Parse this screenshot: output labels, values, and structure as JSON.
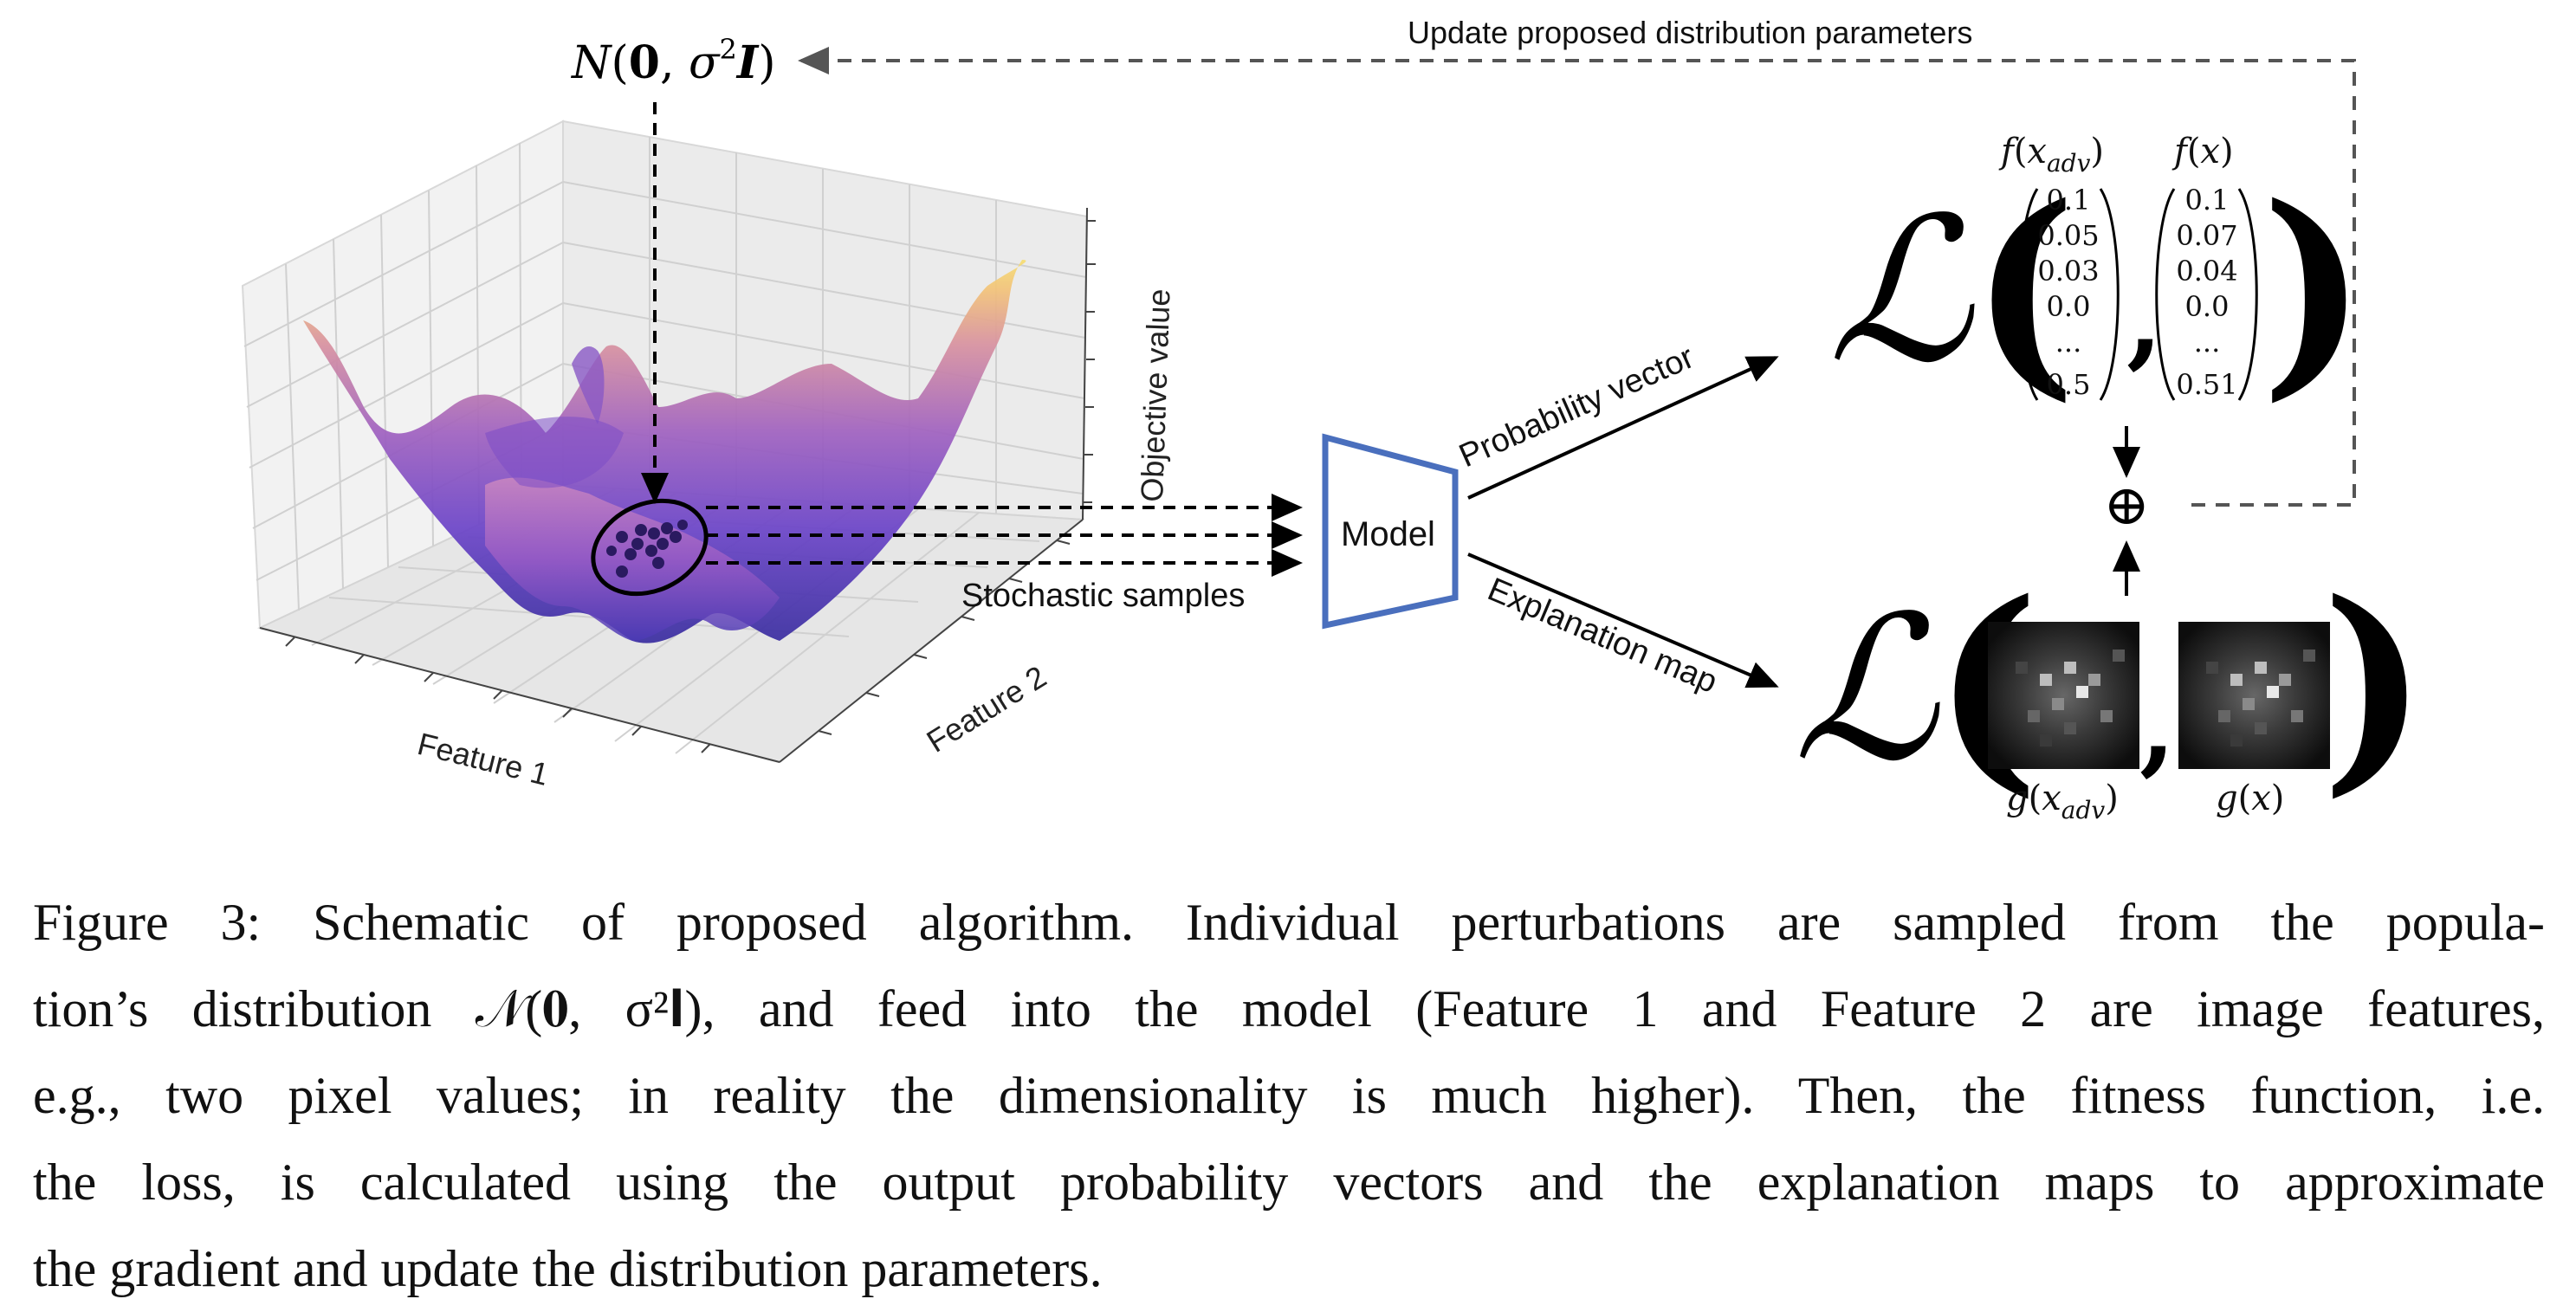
{
  "distribution_label": {
    "prefix": "N",
    "bold0": "0",
    "sep": ", ",
    "sigma": "σ",
    "sup": "2",
    "boldI": "I",
    "open": "(",
    "close": ")"
  },
  "update_label": "Update proposed distribution parameters",
  "plot_3d": {
    "axis_x_label": "Feature 1",
    "axis_y_label": "Feature 2",
    "axis_z_label": "Objective value",
    "colormap": [
      "#3b2a9c",
      "#6a3bc4",
      "#a25ab5",
      "#d98c96",
      "#f3c06d",
      "#f8e06a"
    ]
  },
  "samples_label": "Stochastic samples",
  "model_label": "Model",
  "model_color": "#4a6fbd",
  "prob_vector_label": "Probability vector",
  "explanation_map_label": "Explanation map",
  "loss_symbol": "ℒ",
  "f_adv": {
    "name": "f",
    "arg": "x",
    "sub": "adv",
    "values": [
      "0.1",
      "0.05",
      "0.03",
      "0.0",
      "...",
      "0.5"
    ]
  },
  "f_x": {
    "name": "f",
    "arg": "x",
    "values": [
      "0.1",
      "0.07",
      "0.04",
      "0.0",
      "...",
      "0.51"
    ]
  },
  "g_adv": {
    "name": "g",
    "arg": "x",
    "sub": "adv"
  },
  "g_x": {
    "name": "g",
    "arg": "x"
  },
  "oplus_symbol": "⊕",
  "caption_lines": [
    "Figure 3: Schematic of proposed algorithm. Individual perturbations are sampled from the popula-",
    "tion’s distribution 𝒩(𝟎, σ²𝐈), and feed into the model (Feature 1 and Feature 2 are image features,",
    "e.g., two pixel values; in reality the dimensionality is much higher). Then, the fitness function, i.e.",
    "the loss, is calculated using the output probability vectors and the explanation maps to approximate",
    "the gradient and update the distribution parameters."
  ]
}
